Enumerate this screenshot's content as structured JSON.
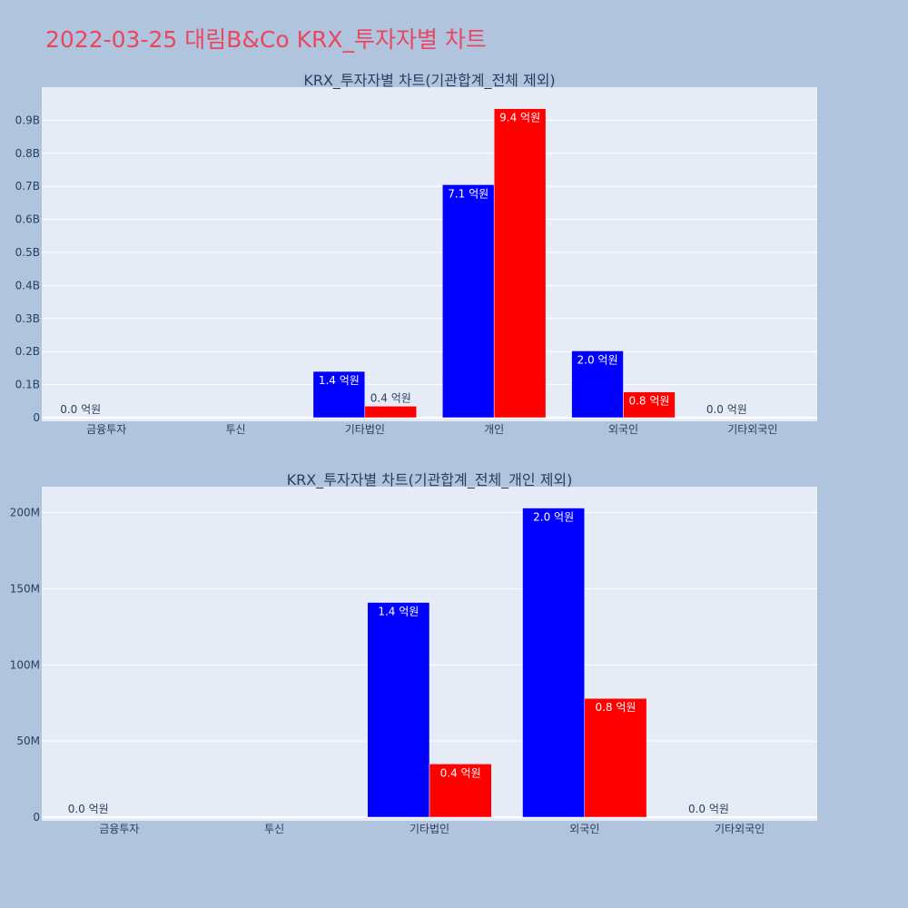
{
  "page_title": "2022-03-25 대림B&Co KRX_투자자별 차트",
  "colors": {
    "buy": "#0000ff",
    "sell": "#ff0000",
    "title": "#e8475f",
    "plot_bg": "#e5ecf6",
    "page_bg": "#b0c4de"
  },
  "chart_data": [
    {
      "type": "bar",
      "title": "KRX_투자자별 차트(기관합계_전체 제외)",
      "categories": [
        "금융투자",
        "투신",
        "기타법인",
        "개인",
        "외국인",
        "기타외국인"
      ],
      "series": [
        {
          "values": [
            0,
            0,
            140000000,
            705000000,
            202000000,
            0
          ],
          "labels": [
            "0.0 억원",
            "",
            "1.4 억원",
            "7.1 억원",
            "2.0 억원",
            "0.0 억원"
          ]
        },
        {
          "values": [
            0,
            0,
            35000000,
            935000000,
            78000000,
            0
          ],
          "labels": [
            "",
            "",
            "0.4 억원",
            "9.4 억원",
            "0.8 억원",
            ""
          ]
        }
      ],
      "ylim": [
        0,
        1000000000
      ],
      "yticks": [
        0,
        100000000,
        200000000,
        300000000,
        400000000,
        500000000,
        600000000,
        700000000,
        800000000,
        900000000
      ],
      "ytick_labels": [
        "0",
        "0.1B",
        "0.2B",
        "0.3B",
        "0.4B",
        "0.5B",
        "0.6B",
        "0.7B",
        "0.8B",
        "0.9B"
      ],
      "grid": true
    },
    {
      "type": "bar",
      "title": "KRX_투자자별 차트(기관합계_전체_개인 제외)",
      "categories": [
        "금융투자",
        "투신",
        "기타법인",
        "외국인",
        "기타외국인"
      ],
      "series": [
        {
          "values": [
            0,
            0,
            141000000,
            203000000,
            0
          ],
          "labels": [
            "0.0 억원",
            "",
            "1.4 억원",
            "2.0 억원",
            "0.0 억원"
          ]
        },
        {
          "values": [
            0,
            0,
            35000000,
            78000000,
            0
          ],
          "labels": [
            "",
            "",
            "0.4 억원",
            "0.8 억원",
            ""
          ]
        }
      ],
      "ylim": [
        0,
        217000000
      ],
      "yticks": [
        0,
        50000000,
        100000000,
        150000000,
        200000000
      ],
      "ytick_labels": [
        "0",
        "50M",
        "100M",
        "150M",
        "200M"
      ],
      "grid": true
    }
  ]
}
